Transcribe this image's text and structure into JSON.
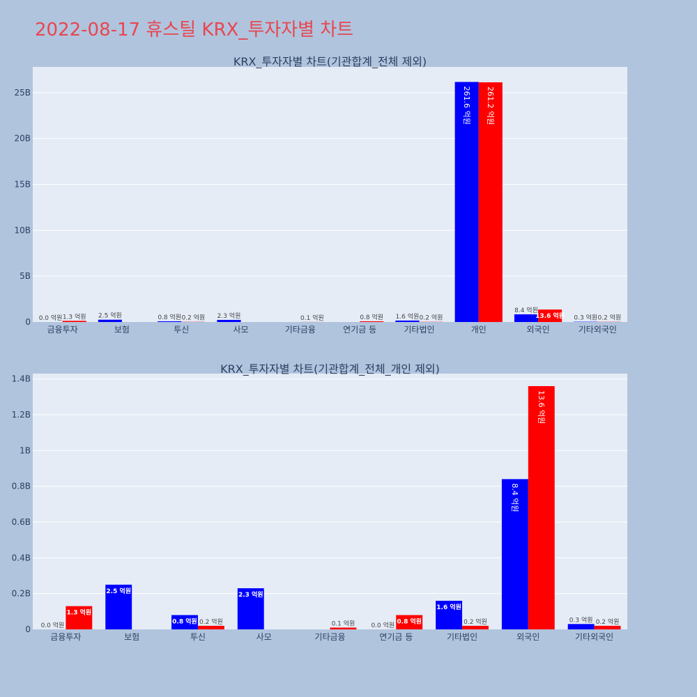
{
  "page": {
    "title": "2022-08-17 휴스틸 KRX_투자자별 차트"
  },
  "colors": {
    "buy": "#0000ff",
    "sell": "#ff0000",
    "plot_bg": "#e5ecf6",
    "page_bg": "#b0c4de",
    "title": "#e8464f"
  },
  "chart_data": [
    {
      "type": "bar",
      "title": "KRX_투자자별 차트(기관합계_전체 제외)",
      "categories": [
        "금융투자",
        "보험",
        "투신",
        "사모",
        "기타금융",
        "연기금 등",
        "기타법인",
        "개인",
        "외국인",
        "기타외국인"
      ],
      "series": [
        {
          "color": "#0000ff",
          "values": [
            0.0,
            0.25,
            0.08,
            0.23,
            0.0,
            0.0,
            0.16,
            26.16,
            0.84,
            0.03
          ],
          "labels": [
            "0.0 억원",
            "2.5 억원",
            "0.8 억원",
            "2.3 억원",
            "",
            "",
            "1.6 억원",
            "261.6 억원",
            "8.4 억원",
            "0.3 억원"
          ]
        },
        {
          "color": "#ff0000",
          "values": [
            0.13,
            0.0,
            0.02,
            0.0,
            0.01,
            0.08,
            0.02,
            26.12,
            1.36,
            0.02
          ],
          "labels": [
            "1.3 억원",
            "",
            "0.2 억원",
            "",
            "0.1 억원",
            "0.8 억원",
            "0.2 억원",
            "261.2 억원",
            "13.6 억원",
            "0.2 억원"
          ]
        }
      ],
      "ylim": [
        0,
        27.8
      ],
      "yticks": [
        0,
        5,
        10,
        15,
        20,
        25
      ],
      "ytick_labels": [
        "0",
        "5B",
        "10B",
        "15B",
        "20B",
        "25B"
      ],
      "grid": true
    },
    {
      "type": "bar",
      "title": "KRX_투자자별 차트(기관합계_전체_개인 제외)",
      "categories": [
        "금융투자",
        "보험",
        "투신",
        "사모",
        "기타금융",
        "연기금 등",
        "기타법인",
        "외국인",
        "기타외국인"
      ],
      "series": [
        {
          "color": "#0000ff",
          "values": [
            0.0,
            0.25,
            0.08,
            0.23,
            0.0,
            0.0,
            0.16,
            0.84,
            0.03
          ],
          "labels": [
            "0.0 억원",
            "2.5 억원",
            "0.8 억원",
            "2.3 억원",
            "",
            "0.0 억원",
            "1.6 억원",
            "8.4 억원",
            "0.3 억원"
          ]
        },
        {
          "color": "#ff0000",
          "values": [
            0.13,
            0.0,
            0.02,
            0.0,
            0.01,
            0.08,
            0.02,
            1.36,
            0.02
          ],
          "labels": [
            "1.3 억원",
            "",
            "0.2 억원",
            "",
            "0.1 억원",
            "0.8 억원",
            "0.2 억원",
            "13.6 억원",
            "0.2 억원"
          ]
        }
      ],
      "ylim": [
        0,
        1.43
      ],
      "yticks": [
        0,
        0.2,
        0.4,
        0.6,
        0.8,
        1.0,
        1.2,
        1.4
      ],
      "ytick_labels": [
        "0",
        "0.2B",
        "0.4B",
        "0.6B",
        "0.8B",
        "1B",
        "1.2B",
        "1.4B"
      ],
      "grid": true
    }
  ]
}
